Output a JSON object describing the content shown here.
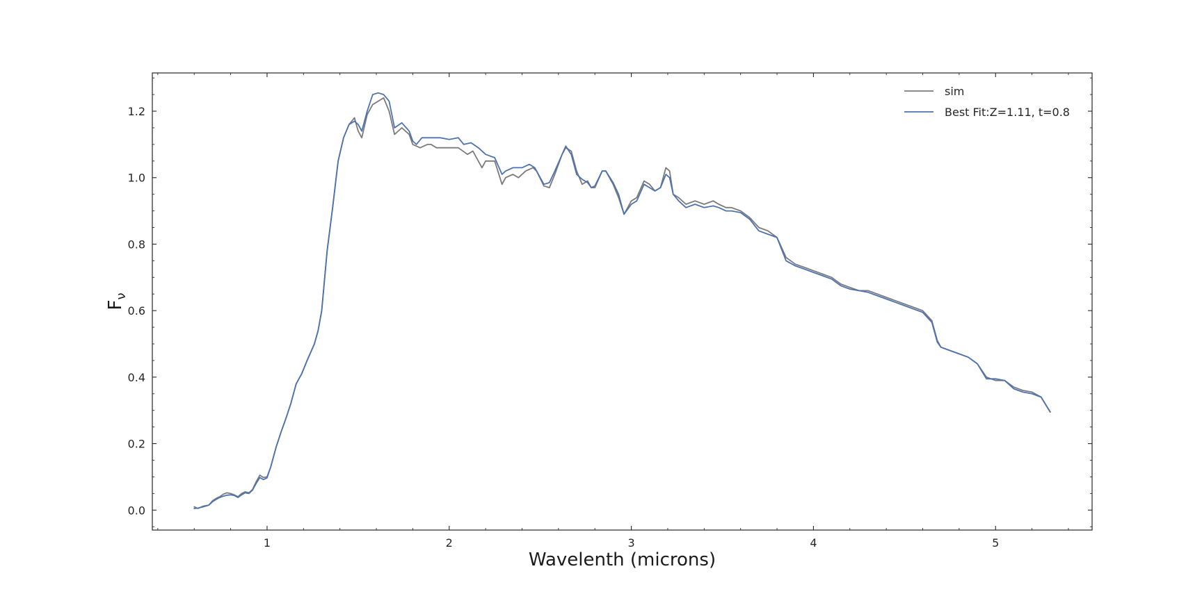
{
  "chart_data": {
    "type": "line",
    "title": "",
    "xlabel": "Wavelenth (microns)",
    "ylabel_main": "F",
    "ylabel_sub": "ν",
    "xlim": [
      0.37,
      5.53
    ],
    "ylim": [
      -0.06,
      1.315
    ],
    "xticks": [
      1,
      2,
      3,
      4,
      5
    ],
    "xtick_labels": [
      "1",
      "2",
      "3",
      "4",
      "5"
    ],
    "yticks": [
      0.0,
      0.2,
      0.4,
      0.6,
      0.8,
      1.0,
      1.2
    ],
    "ytick_labels": [
      "0.0",
      "0.2",
      "0.4",
      "0.6",
      "0.8",
      "1.0",
      "1.2"
    ],
    "grid": false,
    "legend_position": "top-right",
    "series": [
      {
        "name": "sim",
        "color": "#7a7a7a",
        "points": [
          [
            0.6,
            0.01
          ],
          [
            0.62,
            0.005
          ],
          [
            0.65,
            0.012
          ],
          [
            0.68,
            0.015
          ],
          [
            0.7,
            0.028
          ],
          [
            0.72,
            0.035
          ],
          [
            0.74,
            0.04
          ],
          [
            0.76,
            0.048
          ],
          [
            0.78,
            0.052
          ],
          [
            0.8,
            0.05
          ],
          [
            0.82,
            0.046
          ],
          [
            0.84,
            0.04
          ],
          [
            0.86,
            0.05
          ],
          [
            0.88,
            0.055
          ],
          [
            0.9,
            0.052
          ],
          [
            0.92,
            0.062
          ],
          [
            0.94,
            0.085
          ],
          [
            0.96,
            0.105
          ],
          [
            0.98,
            0.098
          ],
          [
            1.0,
            0.1
          ],
          [
            1.02,
            0.13
          ],
          [
            1.05,
            0.19
          ],
          [
            1.08,
            0.24
          ],
          [
            1.1,
            0.27
          ],
          [
            1.13,
            0.32
          ],
          [
            1.16,
            0.38
          ],
          [
            1.19,
            0.41
          ],
          [
            1.22,
            0.45
          ],
          [
            1.26,
            0.5
          ],
          [
            1.28,
            0.54
          ],
          [
            1.3,
            0.6
          ],
          [
            1.33,
            0.78
          ],
          [
            1.36,
            0.91
          ],
          [
            1.39,
            1.05
          ],
          [
            1.42,
            1.12
          ],
          [
            1.45,
            1.16
          ],
          [
            1.48,
            1.18
          ],
          [
            1.5,
            1.14
          ],
          [
            1.52,
            1.12
          ],
          [
            1.55,
            1.19
          ],
          [
            1.58,
            1.22
          ],
          [
            1.61,
            1.23
          ],
          [
            1.64,
            1.24
          ],
          [
            1.67,
            1.2
          ],
          [
            1.7,
            1.13
          ],
          [
            1.74,
            1.15
          ],
          [
            1.78,
            1.13
          ],
          [
            1.8,
            1.1
          ],
          [
            1.84,
            1.09
          ],
          [
            1.88,
            1.1
          ],
          [
            1.9,
            1.1
          ],
          [
            1.93,
            1.09
          ],
          [
            1.96,
            1.09
          ],
          [
            2.0,
            1.09
          ],
          [
            2.05,
            1.09
          ],
          [
            2.1,
            1.07
          ],
          [
            2.13,
            1.08
          ],
          [
            2.15,
            1.06
          ],
          [
            2.18,
            1.03
          ],
          [
            2.2,
            1.05
          ],
          [
            2.22,
            1.05
          ],
          [
            2.25,
            1.05
          ],
          [
            2.29,
            0.98
          ],
          [
            2.31,
            1.0
          ],
          [
            2.35,
            1.01
          ],
          [
            2.38,
            1.0
          ],
          [
            2.42,
            1.02
          ],
          [
            2.46,
            1.03
          ],
          [
            2.48,
            1.02
          ],
          [
            2.52,
            0.975
          ],
          [
            2.55,
            0.97
          ],
          [
            2.58,
            1.01
          ],
          [
            2.62,
            1.07
          ],
          [
            2.64,
            1.09
          ],
          [
            2.67,
            1.08
          ],
          [
            2.7,
            1.02
          ],
          [
            2.73,
            0.98
          ],
          [
            2.76,
            0.99
          ],
          [
            2.78,
            0.97
          ],
          [
            2.8,
            0.97
          ],
          [
            2.84,
            1.02
          ],
          [
            2.86,
            1.02
          ],
          [
            2.9,
            0.98
          ],
          [
            2.93,
            0.94
          ],
          [
            2.96,
            0.89
          ],
          [
            3.0,
            0.93
          ],
          [
            3.03,
            0.94
          ],
          [
            3.07,
            0.99
          ],
          [
            3.1,
            0.98
          ],
          [
            3.13,
            0.96
          ],
          [
            3.16,
            0.97
          ],
          [
            3.19,
            1.03
          ],
          [
            3.21,
            1.02
          ],
          [
            3.23,
            0.95
          ],
          [
            3.26,
            0.94
          ],
          [
            3.3,
            0.92
          ],
          [
            3.35,
            0.93
          ],
          [
            3.4,
            0.92
          ],
          [
            3.45,
            0.93
          ],
          [
            3.48,
            0.92
          ],
          [
            3.52,
            0.91
          ],
          [
            3.55,
            0.91
          ],
          [
            3.6,
            0.9
          ],
          [
            3.65,
            0.88
          ],
          [
            3.7,
            0.85
          ],
          [
            3.75,
            0.84
          ],
          [
            3.8,
            0.82
          ],
          [
            3.85,
            0.76
          ],
          [
            3.9,
            0.74
          ],
          [
            3.95,
            0.73
          ],
          [
            4.0,
            0.72
          ],
          [
            4.05,
            0.71
          ],
          [
            4.1,
            0.7
          ],
          [
            4.15,
            0.68
          ],
          [
            4.2,
            0.67
          ],
          [
            4.25,
            0.66
          ],
          [
            4.3,
            0.66
          ],
          [
            4.35,
            0.65
          ],
          [
            4.4,
            0.64
          ],
          [
            4.45,
            0.63
          ],
          [
            4.5,
            0.62
          ],
          [
            4.55,
            0.61
          ],
          [
            4.6,
            0.6
          ],
          [
            4.65,
            0.57
          ],
          [
            4.68,
            0.51
          ],
          [
            4.7,
            0.49
          ],
          [
            4.75,
            0.48
          ],
          [
            4.8,
            0.47
          ],
          [
            4.85,
            0.46
          ],
          [
            4.9,
            0.44
          ],
          [
            4.95,
            0.4
          ],
          [
            5.0,
            0.39
          ],
          [
            5.05,
            0.39
          ],
          [
            5.1,
            0.37
          ],
          [
            5.15,
            0.36
          ],
          [
            5.2,
            0.355
          ],
          [
            5.25,
            0.34
          ],
          [
            5.3,
            0.295
          ]
        ]
      },
      {
        "name": "Best Fit:Z=1.11, t=0.8",
        "color": "#4c72b0",
        "points": [
          [
            0.6,
            0.005
          ],
          [
            0.62,
            0.006
          ],
          [
            0.65,
            0.01
          ],
          [
            0.68,
            0.015
          ],
          [
            0.7,
            0.025
          ],
          [
            0.72,
            0.032
          ],
          [
            0.74,
            0.038
          ],
          [
            0.76,
            0.042
          ],
          [
            0.78,
            0.045
          ],
          [
            0.8,
            0.046
          ],
          [
            0.82,
            0.044
          ],
          [
            0.84,
            0.038
          ],
          [
            0.86,
            0.046
          ],
          [
            0.88,
            0.052
          ],
          [
            0.9,
            0.05
          ],
          [
            0.92,
            0.06
          ],
          [
            0.94,
            0.08
          ],
          [
            0.96,
            0.098
          ],
          [
            0.98,
            0.092
          ],
          [
            1.0,
            0.097
          ],
          [
            1.02,
            0.13
          ],
          [
            1.05,
            0.19
          ],
          [
            1.08,
            0.24
          ],
          [
            1.1,
            0.27
          ],
          [
            1.13,
            0.32
          ],
          [
            1.16,
            0.38
          ],
          [
            1.19,
            0.41
          ],
          [
            1.22,
            0.45
          ],
          [
            1.26,
            0.5
          ],
          [
            1.28,
            0.54
          ],
          [
            1.3,
            0.6
          ],
          [
            1.33,
            0.78
          ],
          [
            1.36,
            0.91
          ],
          [
            1.39,
            1.05
          ],
          [
            1.42,
            1.12
          ],
          [
            1.45,
            1.16
          ],
          [
            1.48,
            1.17
          ],
          [
            1.5,
            1.16
          ],
          [
            1.52,
            1.14
          ],
          [
            1.55,
            1.2
          ],
          [
            1.58,
            1.25
          ],
          [
            1.61,
            1.255
          ],
          [
            1.64,
            1.25
          ],
          [
            1.67,
            1.23
          ],
          [
            1.7,
            1.15
          ],
          [
            1.74,
            1.165
          ],
          [
            1.78,
            1.14
          ],
          [
            1.8,
            1.11
          ],
          [
            1.82,
            1.1
          ],
          [
            1.85,
            1.12
          ],
          [
            1.9,
            1.12
          ],
          [
            1.95,
            1.12
          ],
          [
            2.0,
            1.115
          ],
          [
            2.05,
            1.12
          ],
          [
            2.08,
            1.1
          ],
          [
            2.12,
            1.105
          ],
          [
            2.16,
            1.09
          ],
          [
            2.2,
            1.07
          ],
          [
            2.25,
            1.06
          ],
          [
            2.29,
            1.01
          ],
          [
            2.31,
            1.02
          ],
          [
            2.35,
            1.03
          ],
          [
            2.4,
            1.03
          ],
          [
            2.44,
            1.04
          ],
          [
            2.47,
            1.03
          ],
          [
            2.52,
            0.98
          ],
          [
            2.55,
            0.985
          ],
          [
            2.58,
            1.02
          ],
          [
            2.62,
            1.07
          ],
          [
            2.64,
            1.095
          ],
          [
            2.67,
            1.07
          ],
          [
            2.7,
            1.01
          ],
          [
            2.73,
            0.995
          ],
          [
            2.76,
            0.985
          ],
          [
            2.78,
            0.97
          ],
          [
            2.8,
            0.975
          ],
          [
            2.84,
            1.02
          ],
          [
            2.86,
            1.02
          ],
          [
            2.9,
            0.985
          ],
          [
            2.93,
            0.95
          ],
          [
            2.96,
            0.89
          ],
          [
            3.0,
            0.92
          ],
          [
            3.03,
            0.93
          ],
          [
            3.07,
            0.98
          ],
          [
            3.1,
            0.97
          ],
          [
            3.13,
            0.96
          ],
          [
            3.16,
            0.97
          ],
          [
            3.19,
            1.01
          ],
          [
            3.21,
            1.0
          ],
          [
            3.23,
            0.95
          ],
          [
            3.26,
            0.93
          ],
          [
            3.3,
            0.91
          ],
          [
            3.35,
            0.92
          ],
          [
            3.4,
            0.91
          ],
          [
            3.45,
            0.915
          ],
          [
            3.48,
            0.91
          ],
          [
            3.52,
            0.9
          ],
          [
            3.55,
            0.9
          ],
          [
            3.6,
            0.895
          ],
          [
            3.65,
            0.875
          ],
          [
            3.7,
            0.84
          ],
          [
            3.75,
            0.83
          ],
          [
            3.8,
            0.82
          ],
          [
            3.85,
            0.75
          ],
          [
            3.9,
            0.735
          ],
          [
            3.95,
            0.725
          ],
          [
            4.0,
            0.715
          ],
          [
            4.05,
            0.705
          ],
          [
            4.1,
            0.695
          ],
          [
            4.15,
            0.675
          ],
          [
            4.2,
            0.665
          ],
          [
            4.25,
            0.66
          ],
          [
            4.3,
            0.655
          ],
          [
            4.35,
            0.645
          ],
          [
            4.4,
            0.635
          ],
          [
            4.45,
            0.625
          ],
          [
            4.5,
            0.615
          ],
          [
            4.55,
            0.605
          ],
          [
            4.6,
            0.595
          ],
          [
            4.65,
            0.565
          ],
          [
            4.68,
            0.505
          ],
          [
            4.7,
            0.49
          ],
          [
            4.75,
            0.48
          ],
          [
            4.8,
            0.47
          ],
          [
            4.85,
            0.46
          ],
          [
            4.9,
            0.44
          ],
          [
            4.95,
            0.395
          ],
          [
            5.0,
            0.395
          ],
          [
            5.05,
            0.39
          ],
          [
            5.1,
            0.365
          ],
          [
            5.15,
            0.355
          ],
          [
            5.2,
            0.35
          ],
          [
            5.25,
            0.34
          ],
          [
            5.3,
            0.295
          ]
        ]
      }
    ]
  }
}
